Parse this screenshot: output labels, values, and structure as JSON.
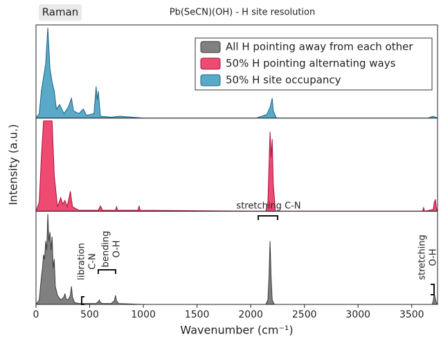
{
  "chart_data": {
    "type": "area",
    "title": "Pb(SeCN)(OH) - H site resolution",
    "tab_label": "Raman",
    "x_label": "Wavenumber (cm⁻¹)",
    "y_label": "Intensity (a.u.)",
    "xlim": [
      0,
      3740
    ],
    "xticks": [
      0,
      500,
      1000,
      1500,
      2000,
      2500,
      3000,
      3500
    ],
    "ylim": [
      0,
      1
    ],
    "legend": "upper right",
    "series": [
      {
        "name": "All H pointing away from each other",
        "color": "#808080",
        "edge": "#3a3a3a",
        "x": [
          0,
          30,
          50,
          60,
          70,
          80,
          90,
          100,
          110,
          120,
          130,
          140,
          150,
          160,
          170,
          180,
          200,
          230,
          260,
          270,
          280,
          300,
          320,
          330,
          340,
          360,
          400,
          560,
          580,
          590,
          600,
          620,
          700,
          730,
          740,
          750,
          770,
          1000,
          2140,
          2160,
          2170,
          2180,
          2190,
          2200,
          2220,
          2400,
          3690,
          3700,
          3710,
          3720,
          3730,
          3740
        ],
        "values": [
          0,
          0.05,
          0.3,
          0.4,
          0.55,
          0.5,
          0.7,
          0.6,
          1,
          0.7,
          0.8,
          0.6,
          0.75,
          0.4,
          0.5,
          0.2,
          0.1,
          0.05,
          0.08,
          0.12,
          0.06,
          0.05,
          0.1,
          0.2,
          0.08,
          0.02,
          0.01,
          0.01,
          0.03,
          0.05,
          0.02,
          0.01,
          0.01,
          0.04,
          0.1,
          0.04,
          0.01,
          0,
          0,
          0.05,
          0.3,
          0.7,
          0.3,
          0.05,
          0,
          0,
          0,
          0.04,
          0.12,
          0.06,
          0.02,
          0
        ]
      },
      {
        "name": "50% H pointing alternating ways",
        "color": "#ee4a72",
        "edge": "#a8103c",
        "x": [
          0,
          30,
          50,
          70,
          90,
          110,
          130,
          150,
          170,
          200,
          230,
          250,
          270,
          290,
          320,
          340,
          400,
          580,
          600,
          620,
          740,
          750,
          760,
          950,
          960,
          970,
          2140,
          2160,
          2170,
          2180,
          2190,
          2200,
          2210,
          2230,
          3600,
          3610,
          3620,
          3700,
          3710,
          3720,
          3730,
          3740
        ],
        "values": [
          0,
          0.1,
          0.6,
          1,
          1,
          1,
          1,
          1,
          0.4,
          0.05,
          0.15,
          0.08,
          0.12,
          0.05,
          0.22,
          0.05,
          0.01,
          0.01,
          0.06,
          0.01,
          0.01,
          0.05,
          0.01,
          0.01,
          0.06,
          0.01,
          0,
          0.1,
          0.5,
          0.88,
          0.6,
          0.8,
          0.3,
          0,
          0,
          0.04,
          0,
          0.02,
          0.1,
          0.13,
          0.03,
          0
        ]
      },
      {
        "name": "50% H site occupancy",
        "color": "#5aa9c9",
        "edge": "#1d6584",
        "x": [
          0,
          30,
          50,
          70,
          90,
          110,
          130,
          150,
          170,
          190,
          220,
          260,
          300,
          330,
          350,
          400,
          440,
          470,
          540,
          560,
          570,
          580,
          600,
          700,
          780,
          1000,
          2050,
          2100,
          2150,
          2180,
          2200,
          2210,
          2240,
          3650,
          3700,
          3740
        ],
        "values": [
          0,
          0.05,
          0.3,
          0.45,
          0.6,
          1,
          0.55,
          0.4,
          0.3,
          0.1,
          0.15,
          0.05,
          0.12,
          0.22,
          0.08,
          0.05,
          0.1,
          0.03,
          0.05,
          0.35,
          0.2,
          0.3,
          0.02,
          0.01,
          0.02,
          0,
          0,
          0.02,
          0.04,
          0.12,
          0.22,
          0.08,
          0,
          0,
          0.02,
          0
        ]
      }
    ],
    "annotations": {
      "stretching_cn": "stretching C-N",
      "libration_cn": [
        "libration",
        "C-N"
      ],
      "bending_oh": [
        "bending",
        "O-H"
      ],
      "stretching_oh": [
        "stretching",
        "O-H"
      ]
    }
  }
}
